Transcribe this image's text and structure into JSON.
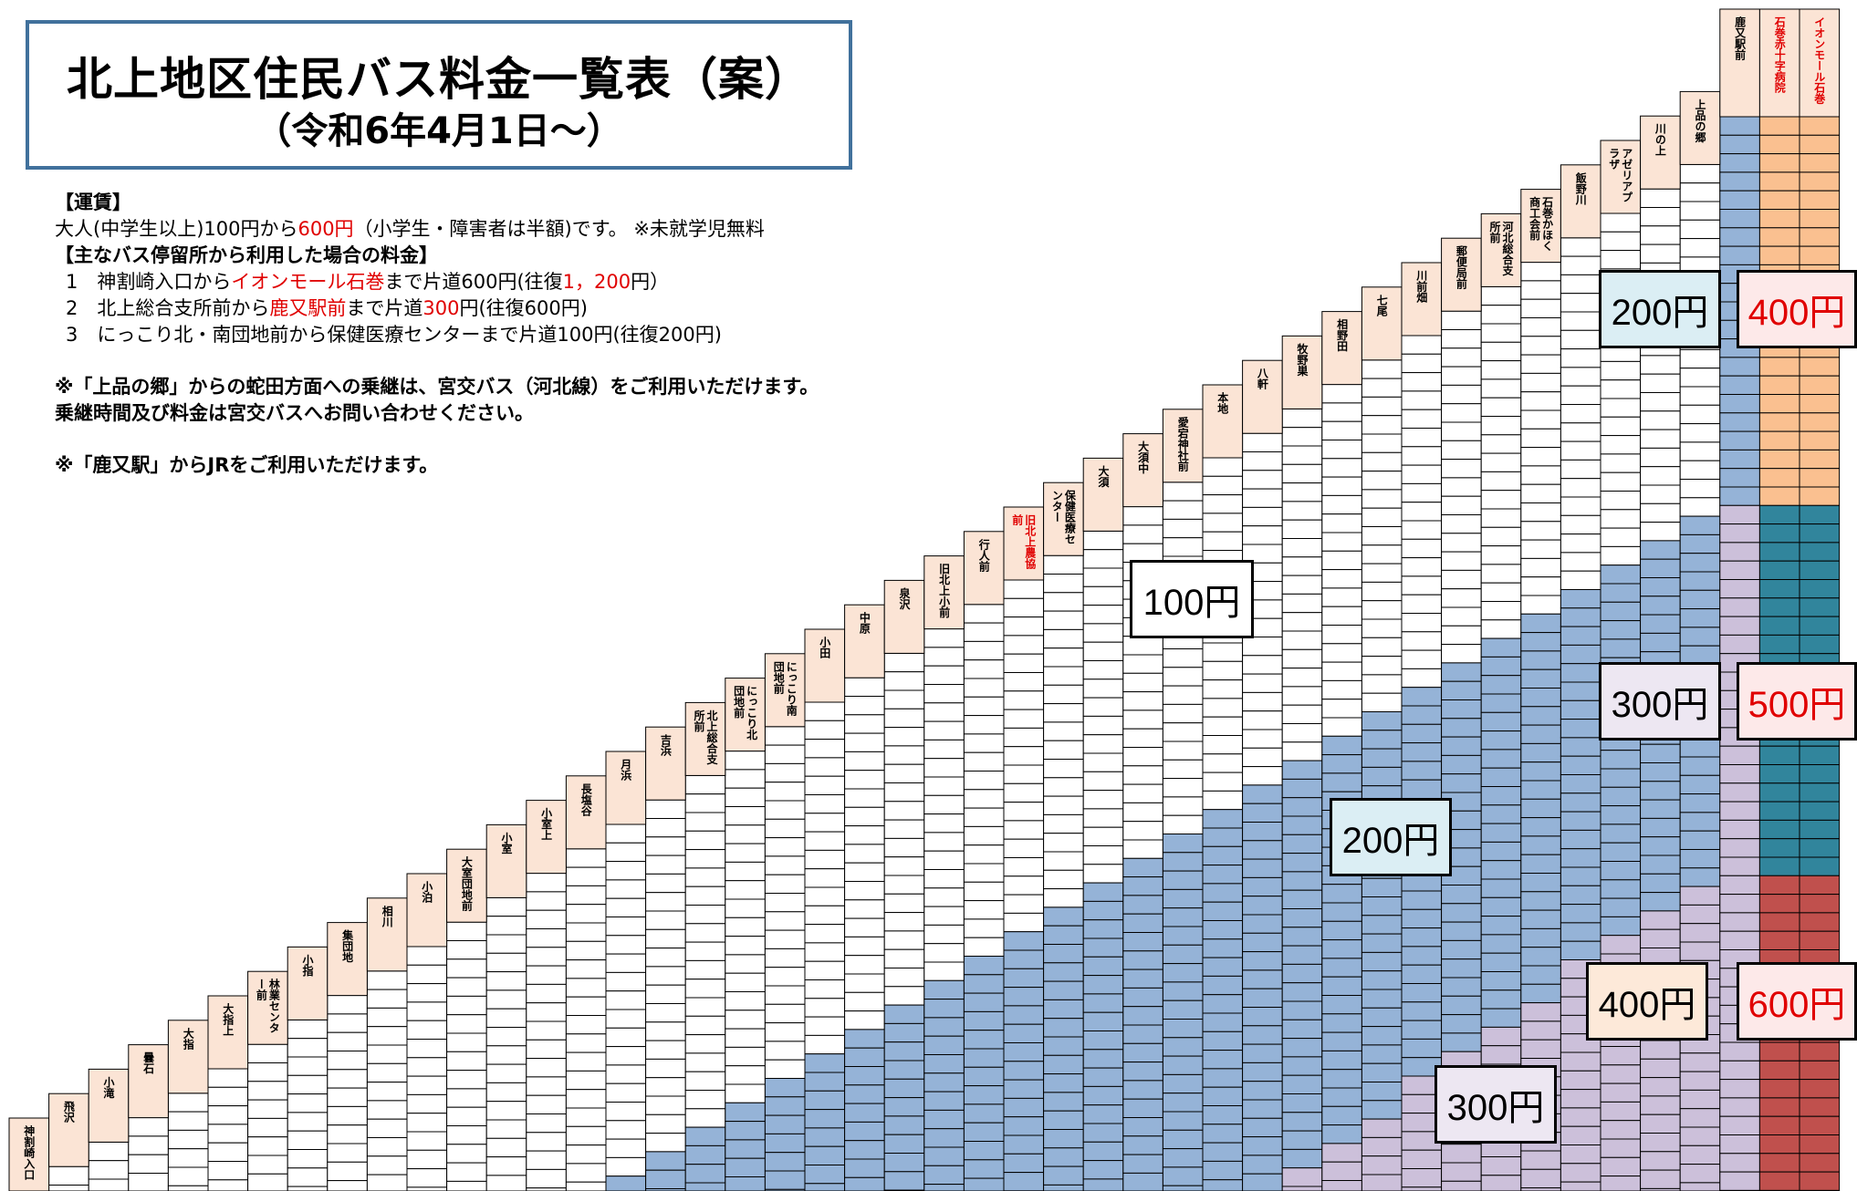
{
  "header": {
    "title": "北上地区住民バス料金一覧表（案）",
    "subtitle": "（令和6年4月1日～）"
  },
  "info": {
    "fare_heading": "【運賃】",
    "fare_prefix": "大人(中学生以上)100円から",
    "fare_max": "600円",
    "fare_suffix": "（小学生・障害者は半額)です。 ※未就学児無料",
    "main_heading": "【主なバス停留所から利用した場合の料金】",
    "examples": [
      {
        "pre": "1　神割崎入口から",
        "red": "イオンモール石巻",
        "mid": "まで片道600円(往復",
        "red2": "1，200",
        "post": "円）"
      },
      {
        "pre": "2　北上総合支所前から",
        "red": "鹿又駅前",
        "mid": "まで片道",
        "red2": "300",
        "post": "円(往復600円)"
      },
      {
        "pre": "3　にっこり北・南団地前から保健医療センターまで片道100円(往復200円)",
        "red": "",
        "mid": "",
        "red2": "",
        "post": ""
      }
    ],
    "note1_line1": "※「上品の郷」からの蛇田方面への乗継は、宮交バス（河北線）をご利用いただけます。",
    "note1_line2": "乗継時間及び料金は宮交バスへお問い合わせください。",
    "note2": "※「鹿又駅」からJRをご利用いただけます。"
  },
  "colors": {
    "title_border": "#41719c",
    "stop_label_bg": "#fbe4d5",
    "fare_200": "#95b3d7",
    "fare_300": "#ccc0da",
    "fare_400": "#fac090",
    "fare_500": "#31859c",
    "fare_600": "#c0504d",
    "label_200_bg": "#dbeef4",
    "label_300_bg": "#ede7f2",
    "label_400_bg": "#fde9d9",
    "label_red_bg": "#fde9e9"
  },
  "stops": [
    {
      "name": "神割崎入口",
      "red": false
    },
    {
      "name": "飛沢",
      "red": false
    },
    {
      "name": "小滝",
      "red": false
    },
    {
      "name": "曇石",
      "red": false
    },
    {
      "name": "大指",
      "red": false
    },
    {
      "name": "大指上",
      "red": false
    },
    {
      "name": "林業センター前",
      "red": false
    },
    {
      "name": "小指",
      "red": false
    },
    {
      "name": "集団地",
      "red": false
    },
    {
      "name": "相川",
      "red": false
    },
    {
      "name": "小泊",
      "red": false
    },
    {
      "name": "大室団地前",
      "red": false
    },
    {
      "name": "小室",
      "red": false
    },
    {
      "name": "小室上",
      "red": false
    },
    {
      "name": "長塩谷",
      "red": false
    },
    {
      "name": "月浜",
      "red": false
    },
    {
      "name": "吉浜",
      "red": false
    },
    {
      "name": "北上総合支所前",
      "red": false
    },
    {
      "name": "にっこり北団地前",
      "red": false
    },
    {
      "name": "にっこり南団地前",
      "red": false
    },
    {
      "name": "小田",
      "red": false
    },
    {
      "name": "中原",
      "red": false
    },
    {
      "name": "泉沢",
      "red": false
    },
    {
      "name": "旧北上小前",
      "red": false
    },
    {
      "name": "行人前",
      "red": false
    },
    {
      "name": "旧北上農協前",
      "red": true
    },
    {
      "name": "保健医療センター",
      "red": false
    },
    {
      "name": "大須",
      "red": false
    },
    {
      "name": "大須中",
      "red": false
    },
    {
      "name": "愛宕神社前",
      "red": false
    },
    {
      "name": "本地",
      "red": false
    },
    {
      "name": "八軒",
      "red": false
    },
    {
      "name": "牧野巣",
      "red": false
    },
    {
      "name": "相野田",
      "red": false
    },
    {
      "name": "七尾",
      "red": false
    },
    {
      "name": "川前畑",
      "red": false
    },
    {
      "name": "郵便局前",
      "red": false
    },
    {
      "name": "河北総合支所前",
      "red": false
    },
    {
      "name": "石巻かほく商工会前",
      "red": false
    },
    {
      "name": "飯野川",
      "red": false
    },
    {
      "name": "アゼリアプラザ",
      "red": false
    },
    {
      "name": "川の上",
      "red": false
    },
    {
      "name": "上品の郷",
      "red": false
    },
    {
      "name": "鹿又駅前",
      "red": false
    },
    {
      "name": "石巻赤十字病院",
      "red": true
    },
    {
      "name": "イオンモール石巻",
      "red": true
    }
  ],
  "fare_labels": [
    {
      "text": "100円",
      "color": "black",
      "bg": "#ffffff"
    },
    {
      "text": "200円",
      "color": "black",
      "bg": "#dbeef4"
    },
    {
      "text": "300円",
      "color": "black",
      "bg": "#ede7f2"
    },
    {
      "text": "200円",
      "color": "black",
      "bg": "#dbeef4"
    },
    {
      "text": "300円",
      "color": "black",
      "bg": "#ede7f2"
    },
    {
      "text": "400円",
      "color": "black",
      "bg": "#fde9d9"
    },
    {
      "text": "400円",
      "color": "red",
      "bg": "#fde9e9"
    },
    {
      "text": "500円",
      "color": "red",
      "bg": "#fde9e9"
    },
    {
      "text": "600円",
      "color": "red",
      "bg": "#fde9e9"
    }
  ]
}
